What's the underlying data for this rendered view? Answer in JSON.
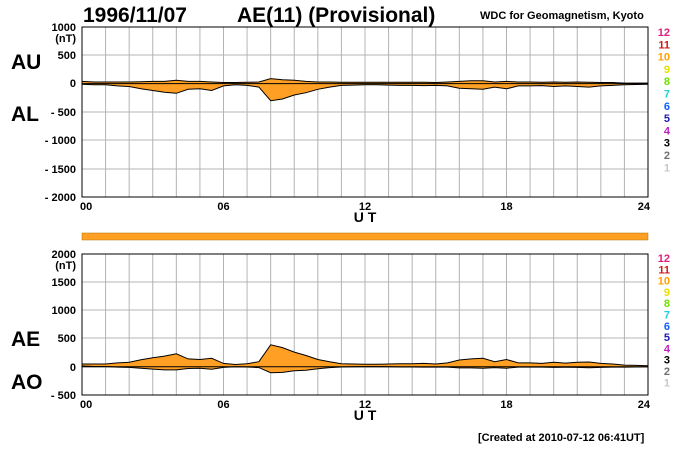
{
  "header": {
    "date": "1996/11/07",
    "title": "AE(11) (Provisional)",
    "source": "WDC for Geomagnetism, Kyoto"
  },
  "footer": "[Created at 2010-07-12 06:41UT]",
  "colors": {
    "fill": "#ffa024",
    "grid": "#b4b4b4",
    "line": "#000000"
  },
  "station_levels": [
    {
      "label": "12",
      "color": "#e0207f"
    },
    {
      "label": "11",
      "color": "#d01818"
    },
    {
      "label": "10",
      "color": "#ffa000"
    },
    {
      "label": "9",
      "color": "#e8e000"
    },
    {
      "label": "8",
      "color": "#70e000"
    },
    {
      "label": "7",
      "color": "#20d0d0"
    },
    {
      "label": "6",
      "color": "#1060ff"
    },
    {
      "label": "5",
      "color": "#2020b0"
    },
    {
      "label": "4",
      "color": "#c020c0"
    },
    {
      "label": "3",
      "color": "#000000"
    },
    {
      "label": "2",
      "color": "#707070"
    },
    {
      "label": "1",
      "color": "#c8c8c8"
    }
  ],
  "chart_data": [
    {
      "type": "area",
      "panel": "AU/AL",
      "upper_label": "AU",
      "lower_label": "AL",
      "unit": "(nT)",
      "xlabel": "U T",
      "xlim": [
        0,
        24
      ],
      "xticks": [
        "00",
        "06",
        "12",
        "18",
        "24"
      ],
      "ylim": [
        -2000,
        1000
      ],
      "yticks": [
        "1000",
        "500",
        "0",
        "- 500",
        "- 1000",
        "- 1500",
        "- 2000"
      ],
      "x": [
        0,
        0.5,
        1,
        1.5,
        2,
        2.5,
        3,
        3.5,
        4,
        4.5,
        5,
        5.5,
        6,
        6.5,
        7,
        7.5,
        8,
        8.5,
        9,
        9.5,
        10,
        10.5,
        11,
        11.5,
        12,
        12.5,
        13,
        13.5,
        14,
        14.5,
        15,
        15.5,
        16,
        16.5,
        17,
        17.5,
        18,
        18.5,
        19,
        19.5,
        20,
        20.5,
        21,
        21.5,
        22,
        22.5,
        23,
        23.5,
        24
      ],
      "series": [
        {
          "name": "AU",
          "values": [
            40,
            30,
            30,
            30,
            30,
            35,
            40,
            40,
            60,
            40,
            40,
            30,
            20,
            20,
            25,
            30,
            90,
            70,
            60,
            40,
            30,
            30,
            25,
            25,
            25,
            25,
            25,
            25,
            25,
            25,
            20,
            30,
            40,
            50,
            50,
            30,
            40,
            30,
            30,
            25,
            30,
            25,
            30,
            25,
            20,
            20,
            10,
            10,
            10
          ]
        },
        {
          "name": "AL",
          "values": [
            -10,
            -20,
            -20,
            -40,
            -50,
            -90,
            -120,
            -150,
            -170,
            -100,
            -90,
            -120,
            -40,
            -20,
            -30,
            -60,
            -300,
            -270,
            -200,
            -160,
            -100,
            -60,
            -30,
            -25,
            -20,
            -20,
            -25,
            -30,
            -30,
            -35,
            -30,
            -40,
            -80,
            -90,
            -100,
            -60,
            -90,
            -40,
            -40,
            -35,
            -50,
            -40,
            -50,
            -60,
            -40,
            -30,
            -20,
            -15,
            -10
          ]
        }
      ]
    },
    {
      "type": "area",
      "panel": "AE/AO",
      "upper_label": "AE",
      "lower_label": "AO",
      "unit": "(nT)",
      "xlabel": "U T",
      "xlim": [
        0,
        24
      ],
      "xticks": [
        "00",
        "06",
        "12",
        "18",
        "24"
      ],
      "ylim": [
        -500,
        2000
      ],
      "yticks": [
        "2000",
        "1500",
        "1000",
        "500",
        "0",
        "- 500"
      ],
      "x": [
        0,
        0.5,
        1,
        1.5,
        2,
        2.5,
        3,
        3.5,
        4,
        4.5,
        5,
        5.5,
        6,
        6.5,
        7,
        7.5,
        8,
        8.5,
        9,
        9.5,
        10,
        10.5,
        11,
        11.5,
        12,
        12.5,
        13,
        13.5,
        14,
        14.5,
        15,
        15.5,
        16,
        16.5,
        17,
        17.5,
        18,
        18.5,
        19,
        19.5,
        20,
        20.5,
        21,
        21.5,
        22,
        22.5,
        23,
        23.5,
        24
      ],
      "series": [
        {
          "name": "AE",
          "values": [
            50,
            50,
            50,
            70,
            80,
            125,
            160,
            190,
            230,
            140,
            130,
            150,
            60,
            40,
            55,
            90,
            390,
            340,
            260,
            200,
            130,
            90,
            55,
            50,
            45,
            45,
            50,
            55,
            55,
            60,
            50,
            70,
            120,
            140,
            150,
            90,
            130,
            70,
            70,
            60,
            80,
            65,
            80,
            85,
            60,
            50,
            30,
            25,
            20
          ]
        },
        {
          "name": "AO",
          "values": [
            15,
            5,
            5,
            -5,
            -10,
            -27,
            -40,
            -55,
            -55,
            -30,
            -25,
            -45,
            -10,
            0,
            -3,
            -15,
            -105,
            -100,
            -70,
            -60,
            -35,
            -15,
            -3,
            0,
            3,
            3,
            0,
            -3,
            -3,
            -5,
            -5,
            -5,
            -20,
            -20,
            -25,
            -15,
            -25,
            -5,
            -5,
            -5,
            -10,
            -8,
            -10,
            -18,
            -10,
            -5,
            -5,
            -3,
            0
          ]
        }
      ]
    }
  ]
}
